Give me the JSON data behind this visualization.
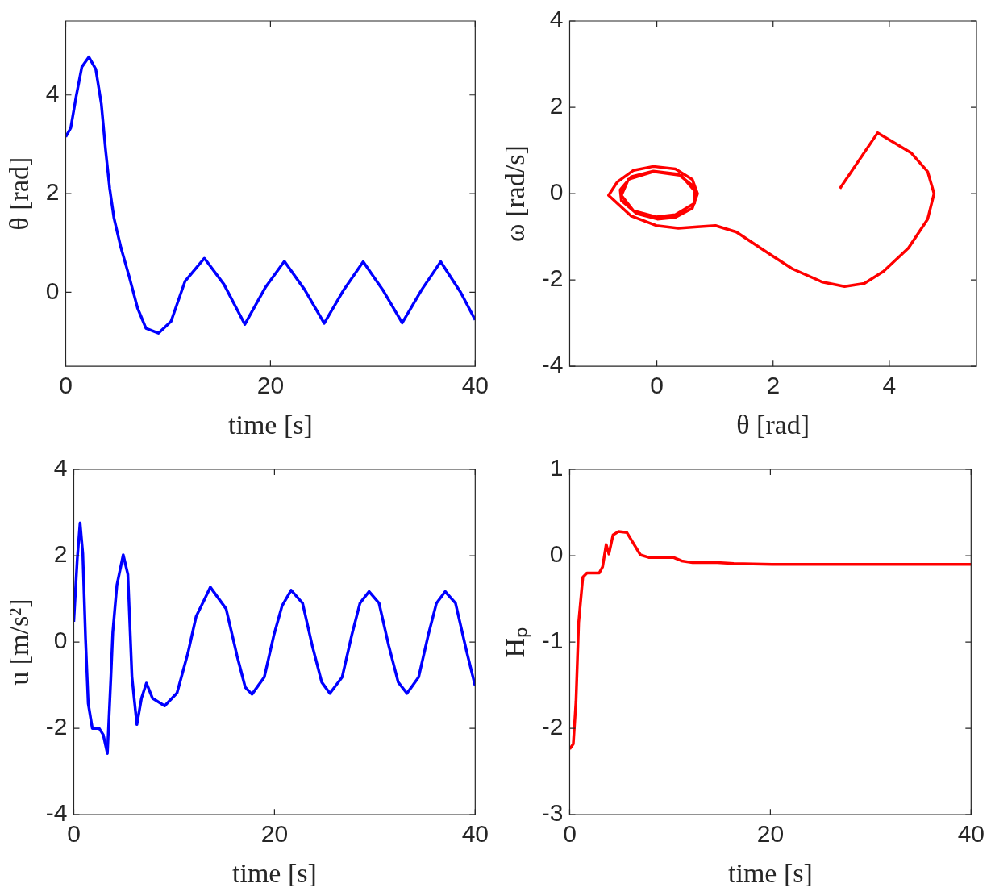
{
  "chart_data": [
    {
      "type": "line",
      "xlabel": "time [s]",
      "ylabel": "θ [rad]",
      "xlim": [
        0,
        40
      ],
      "xticks": [
        0,
        20,
        40
      ],
      "ylim": [
        -1.5,
        5.5
      ],
      "yticks": [
        0,
        2,
        4
      ],
      "grid": false,
      "legend": false,
      "marker": "none",
      "line_style": "solid",
      "series": [
        {
          "color": "#0000ff",
          "x": [
            0,
            0.49,
            1.03,
            1.58,
            2.26,
            2.94,
            3.48,
            3.89,
            4.3,
            4.71,
            5.39,
            6.2,
            7.02,
            7.84,
            9.06,
            10.29,
            11.65,
            13.55,
            15.46,
            17.5,
            19.54,
            21.36,
            23.35,
            25.25,
            27.16,
            29.06,
            30.97,
            32.87,
            34.77,
            36.63,
            38.58,
            40
          ],
          "values": [
            3.15,
            3.33,
            3.98,
            4.57,
            4.77,
            4.52,
            3.82,
            2.9,
            2.1,
            1.51,
            0.91,
            0.32,
            -0.32,
            -0.73,
            -0.83,
            -0.59,
            0.22,
            0.69,
            0.16,
            -0.65,
            0.11,
            0.63,
            0.05,
            -0.63,
            0.05,
            0.62,
            0.05,
            -0.62,
            0.05,
            0.62,
            0,
            -0.56
          ]
        }
      ]
    },
    {
      "type": "line",
      "xlabel": "θ [rad]",
      "ylabel": "ω [rad/s]",
      "xlim": [
        -1.5,
        5.5
      ],
      "xticks": [
        0,
        2,
        4
      ],
      "ylim": [
        -4,
        4
      ],
      "yticks": [
        -4,
        -2,
        0,
        2,
        4
      ],
      "grid": false,
      "legend": false,
      "marker": "none",
      "line_style": "solid",
      "series": [
        {
          "color": "#ff0000",
          "x": [
            3.15,
            3.8,
            4.38,
            4.66,
            4.77,
            4.66,
            4.33,
            3.9,
            3.57,
            3.23,
            2.85,
            2.33,
            1.85,
            1.37,
            1.01,
            0.7,
            0.37,
            -0.01,
            -0.44,
            -0.83,
            -0.68,
            -0.4,
            -0.06,
            0.32,
            0.61,
            0.7,
            0.61,
            0.32,
            0.01,
            -0.35,
            -0.61,
            -0.63,
            -0.44,
            -0.06,
            0.37,
            0.65,
            0.65,
            0.32,
            -0.01,
            -0.4,
            -0.61,
            -0.49,
            -0.06,
            0.42,
            0.68
          ],
          "values": [
            0.12,
            1.41,
            0.94,
            0.51,
            0,
            -0.59,
            -1.26,
            -1.8,
            -2.08,
            -2.15,
            -2.05,
            -1.74,
            -1.32,
            -0.89,
            -0.74,
            -0.77,
            -0.8,
            -0.74,
            -0.52,
            -0.04,
            0.27,
            0.54,
            0.63,
            0.57,
            0.33,
            0,
            -0.34,
            -0.55,
            -0.59,
            -0.46,
            -0.16,
            0.09,
            0.39,
            0.52,
            0.45,
            0.15,
            -0.22,
            -0.49,
            -0.54,
            -0.4,
            -0.04,
            0.33,
            0.51,
            0.42,
            0.02
          ]
        }
      ]
    },
    {
      "type": "line",
      "xlabel": "time [s]",
      "ylabel": "u [m/s²]",
      "xlim": [
        0,
        40
      ],
      "xticks": [
        0,
        20,
        40
      ],
      "ylim": [
        -4,
        4
      ],
      "yticks": [
        -4,
        -2,
        0,
        2,
        4
      ],
      "grid": false,
      "legend": false,
      "marker": "none",
      "line_style": "solid",
      "series": [
        {
          "color": "#0000ff",
          "x": [
            0,
            0.35,
            0.63,
            0.9,
            1.17,
            1.44,
            1.85,
            2.53,
            2.94,
            3.35,
            3.7,
            3.89,
            4.3,
            4.93,
            5.39,
            5.8,
            6.29,
            6.75,
            7.24,
            7.84,
            9.06,
            10.29,
            11.37,
            12.19,
            13.61,
            15.18,
            16.27,
            17.09,
            17.76,
            18.99,
            19.94,
            20.76,
            21.66,
            22.8,
            23.76,
            24.71,
            25.52,
            26.75,
            27.7,
            28.52,
            29.42,
            30.42,
            31.38,
            32.33,
            33.2,
            34.37,
            35.32,
            36.14,
            37.01,
            38.04,
            39.13,
            40
          ],
          "values": [
            0.47,
            1.93,
            2.76,
            2.05,
            0.1,
            -1.42,
            -2,
            -2,
            -2.15,
            -2.58,
            -0.81,
            0.23,
            1.32,
            2.02,
            1.57,
            -0.81,
            -1.91,
            -1.3,
            -0.95,
            -1.3,
            -1.48,
            -1.18,
            -0.26,
            0.59,
            1.27,
            0.77,
            -0.32,
            -1.05,
            -1.21,
            -0.81,
            0.16,
            0.84,
            1.2,
            0.9,
            -0.08,
            -0.93,
            -1.19,
            -0.81,
            0.16,
            0.9,
            1.17,
            0.9,
            -0.08,
            -0.93,
            -1.19,
            -0.81,
            0.16,
            0.9,
            1.17,
            0.9,
            -0.2,
            -1.02
          ]
        }
      ]
    },
    {
      "type": "line",
      "xlabel": "time [s]",
      "ylabel": "Hₚ",
      "xlim": [
        0,
        40
      ],
      "xticks": [
        0,
        20,
        40
      ],
      "ylim": [
        -3,
        1
      ],
      "yticks": [
        -3,
        -2,
        -1,
        0,
        1
      ],
      "grid": false,
      "legend": false,
      "marker": "none",
      "line_style": "solid",
      "series": [
        {
          "color": "#ff0000",
          "x": [
            0,
            0.36,
            0.63,
            0.9,
            1.31,
            1.72,
            2.95,
            3.28,
            3.64,
            3.91,
            4.32,
            4.87,
            5.69,
            6.37,
            7.05,
            7.87,
            10.33,
            11.15,
            12.25,
            14.71,
            16.35,
            20.18,
            26.74,
            40
          ],
          "values": [
            -2.24,
            -2.18,
            -1.69,
            -0.77,
            -0.25,
            -0.2,
            -0.2,
            -0.13,
            0.13,
            0.02,
            0.24,
            0.28,
            0.27,
            0.14,
            0.01,
            -0.02,
            -0.02,
            -0.06,
            -0.08,
            -0.08,
            -0.09,
            -0.1,
            -0.1,
            -0.1
          ]
        }
      ]
    }
  ]
}
